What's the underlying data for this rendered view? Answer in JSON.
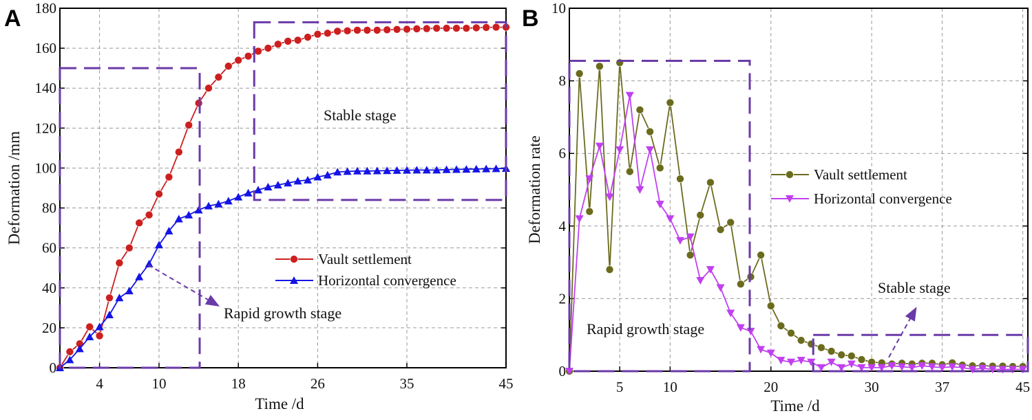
{
  "colors": {
    "vault_A": "#cc1f1f",
    "horizontal_A": "#1414e6",
    "vault_B": "#6b6b1e",
    "horizontal_B": "#c040f0",
    "stage_box": "#6a3aa8",
    "grid": "#9a9a9a"
  },
  "chart_data": [
    {
      "panel_label": "A",
      "type": "line",
      "xlabel": "Time /d",
      "ylabel": "Deformation /mm",
      "xlim": [
        0,
        45
      ],
      "ylim": [
        0,
        180
      ],
      "xticks": [
        4,
        10,
        18,
        26,
        35,
        45
      ],
      "yticks": [
        0,
        20,
        40,
        60,
        80,
        100,
        120,
        140,
        160,
        180
      ],
      "grid": true,
      "legend_position": "center-right",
      "x": [
        0,
        1,
        2,
        3,
        4,
        5,
        6,
        7,
        8,
        9,
        10,
        11,
        12,
        13,
        14,
        15,
        16,
        17,
        18,
        19,
        20,
        21,
        22,
        23,
        24,
        25,
        26,
        27,
        28,
        29,
        30,
        31,
        32,
        33,
        34,
        35,
        36,
        37,
        38,
        39,
        40,
        41,
        42,
        43,
        44,
        45
      ],
      "series": [
        {
          "name": "Vault settlement",
          "marker": "circle",
          "values": [
            0,
            8,
            12,
            20.5,
            16,
            35,
            52.5,
            60,
            72.5,
            76.5,
            87,
            95.5,
            108,
            121.5,
            132.5,
            140,
            145.5,
            151,
            154,
            156,
            158.5,
            160,
            162,
            163.5,
            164,
            165.5,
            167,
            167.5,
            168.5,
            168.7,
            169,
            169,
            169,
            169.2,
            169.4,
            169.5,
            169.7,
            169.8,
            170,
            170,
            170,
            170,
            170.2,
            170.4,
            170.5,
            170.5
          ]
        },
        {
          "name": "Horizontal convergence",
          "marker": "triangle-up",
          "values": [
            0,
            4,
            9.5,
            15.5,
            20.5,
            26.5,
            35,
            38.5,
            45.5,
            52,
            61.5,
            68.5,
            74.5,
            76.5,
            79,
            81,
            82,
            83.5,
            85.5,
            87.5,
            89,
            90.5,
            91.5,
            92.5,
            93.5,
            94,
            95.5,
            96.5,
            98,
            98.3,
            98.5,
            98.5,
            98.6,
            98.7,
            98.8,
            98.9,
            99,
            99,
            99,
            99.2,
            99.3,
            99.4,
            99.5,
            99.6,
            99.7,
            99.8
          ]
        }
      ],
      "regions": [
        {
          "name": "Rapid growth stage",
          "x": [
            0,
            14.1
          ],
          "y": [
            0,
            150
          ]
        },
        {
          "name": "Stable stage",
          "x": [
            19.6,
            45
          ],
          "y": [
            84,
            173
          ]
        }
      ],
      "annotations": {
        "stable": "Stable stage",
        "rapid": "Rapid growth stage"
      }
    },
    {
      "panel_label": "B",
      "type": "line",
      "xlabel": "Time /d",
      "ylabel": "Deformation rate",
      "xlim": [
        0,
        45.5
      ],
      "ylim": [
        0,
        10
      ],
      "xticks": [
        5,
        10,
        20,
        30,
        37,
        45
      ],
      "yticks": [
        0,
        2,
        4,
        6,
        8,
        10
      ],
      "grid": true,
      "legend_position": "center-right",
      "x": [
        0,
        1,
        2,
        3,
        4,
        5,
        6,
        7,
        8,
        9,
        10,
        11,
        12,
        13,
        14,
        15,
        16,
        17,
        18,
        19,
        20,
        21,
        22,
        23,
        24,
        25,
        26,
        27,
        28,
        29,
        30,
        31,
        32,
        33,
        34,
        35,
        36,
        37,
        38,
        39,
        40,
        41,
        42,
        43,
        44,
        45
      ],
      "series": [
        {
          "name": "Vault settlement",
          "marker": "circle",
          "values": [
            0,
            8.2,
            4.4,
            8.4,
            2.8,
            8.5,
            5.5,
            7.2,
            6.6,
            5.6,
            7.4,
            5.3,
            3.2,
            4.3,
            5.2,
            3.9,
            4.1,
            2.4,
            2.6,
            3.2,
            1.8,
            1.25,
            1.05,
            0.85,
            0.75,
            0.65,
            0.55,
            0.45,
            0.42,
            0.32,
            0.25,
            0.23,
            0.2,
            0.22,
            0.2,
            0.22,
            0.22,
            0.18,
            0.23,
            0.17,
            0.15,
            0.15,
            0.14,
            0.14,
            0.13,
            0.13
          ]
        },
        {
          "name": "Horizontal convergence",
          "marker": "triangle-down",
          "values": [
            0,
            4.2,
            5.3,
            6.2,
            4.8,
            6.1,
            7.6,
            5.0,
            6.1,
            4.6,
            4.2,
            3.6,
            3.7,
            2.5,
            2.8,
            2.3,
            1.6,
            1.2,
            1.1,
            0.6,
            0.5,
            0.3,
            0.25,
            0.3,
            0.25,
            0.1,
            0.25,
            0.1,
            0.2,
            0.1,
            0.1,
            0.1,
            0.15,
            0.12,
            0.1,
            0.15,
            0.12,
            0.1,
            0.12,
            0.1,
            0.05,
            0.08,
            0.05,
            0.05,
            0.05,
            0.05
          ]
        }
      ],
      "regions": [
        {
          "name": "Rapid growth stage",
          "x": [
            0,
            17.9
          ],
          "y": [
            0,
            8.55
          ]
        },
        {
          "name": "Stable stage",
          "x": [
            24.2,
            45.5
          ],
          "y": [
            0,
            1.0
          ]
        }
      ],
      "annotations": {
        "stable": "Stable stage",
        "rapid": "Rapid growth stage"
      }
    }
  ]
}
